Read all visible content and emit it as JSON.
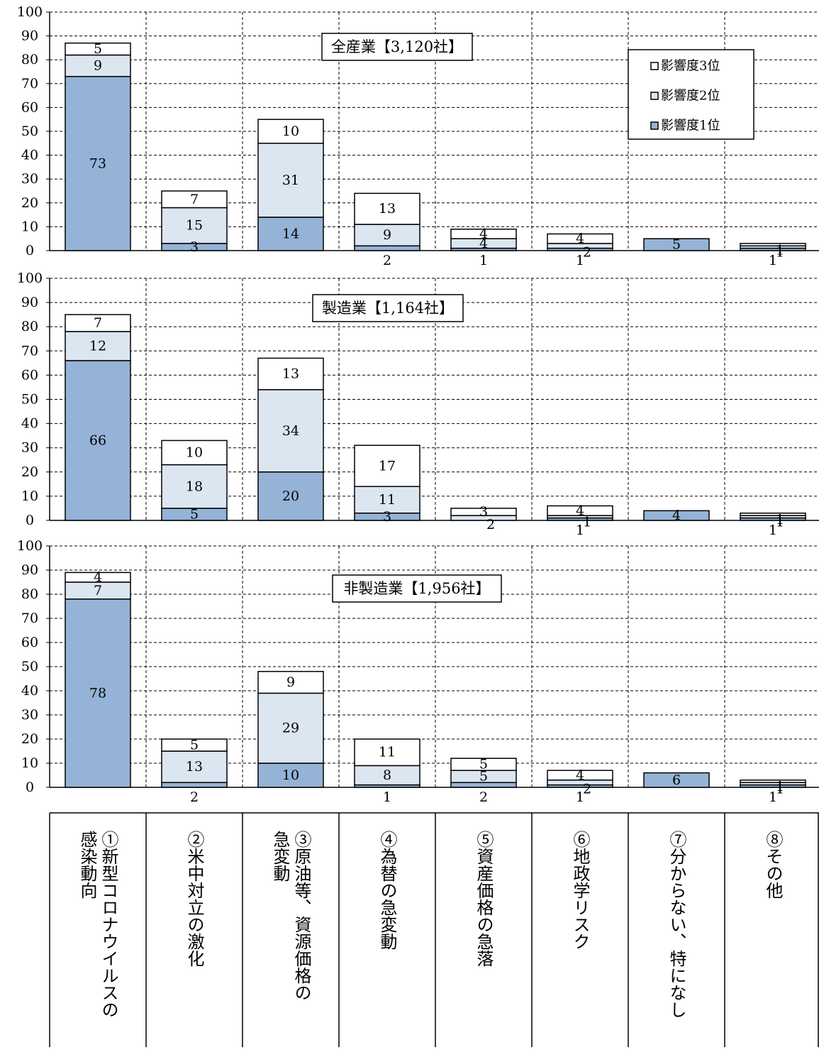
{
  "chart_data": [
    {
      "type": "bar",
      "stacked": true,
      "title": "全産業【3,120社】",
      "categories": [
        "①新型コロナウイルスの感染動向",
        "②米中対立の激化",
        "③原油等、資源価格の急変動",
        "④為替の急変動",
        "⑤資産価格の急落",
        "⑥地政学リスク",
        "⑦分からない、特になし",
        "⑧その他"
      ],
      "series": [
        {
          "name": "影響度1位",
          "values": [
            73,
            3,
            14,
            2,
            1,
            1,
            5,
            1
          ]
        },
        {
          "name": "影響度2位",
          "values": [
            9,
            15,
            31,
            9,
            4,
            2,
            0,
            1
          ]
        },
        {
          "name": "影響度3位",
          "values": [
            5,
            7,
            10,
            13,
            4,
            4,
            0,
            1
          ]
        }
      ],
      "ylim": [
        0,
        100
      ],
      "yticks": [
        0,
        10,
        20,
        30,
        40,
        50,
        60,
        70,
        80,
        90,
        100
      ],
      "grid": true,
      "legend": "top-right"
    },
    {
      "type": "bar",
      "stacked": true,
      "title": "製造業【1,164社】",
      "categories": [
        "①新型コロナウイルスの感染動向",
        "②米中対立の激化",
        "③原油等、資源価格の急変動",
        "④為替の急変動",
        "⑤資産価格の急落",
        "⑥地政学リスク",
        "⑦分からない、特になし",
        "⑧その他"
      ],
      "series": [
        {
          "name": "影響度1位",
          "values": [
            66,
            5,
            20,
            3,
            0,
            1,
            4,
            1
          ]
        },
        {
          "name": "影響度2位",
          "values": [
            12,
            18,
            34,
            11,
            2,
            1,
            0,
            1
          ]
        },
        {
          "name": "影響度3位",
          "values": [
            7,
            10,
            13,
            17,
            3,
            4,
            0,
            1
          ]
        }
      ],
      "ylim": [
        0,
        100
      ],
      "yticks": [
        0,
        10,
        20,
        30,
        40,
        50,
        60,
        70,
        80,
        90,
        100
      ],
      "grid": true
    },
    {
      "type": "bar",
      "stacked": true,
      "title": "非製造業【1,956社】",
      "categories": [
        "①新型コロナウイルスの感染動向",
        "②米中対立の激化",
        "③原油等、資源価格の急変動",
        "④為替の急変動",
        "⑤資産価格の急落",
        "⑥地政学リスク",
        "⑦分からない、特になし",
        "⑧その他"
      ],
      "series": [
        {
          "name": "影響度1位",
          "values": [
            78,
            2,
            10,
            1,
            2,
            1,
            6,
            1
          ]
        },
        {
          "name": "影響度2位",
          "values": [
            7,
            13,
            29,
            8,
            5,
            2,
            0,
            1
          ]
        },
        {
          "name": "影響度3位",
          "values": [
            4,
            5,
            9,
            11,
            5,
            4,
            0,
            1
          ]
        }
      ],
      "ylim": [
        0,
        100
      ],
      "yticks": [
        0,
        10,
        20,
        30,
        40,
        50,
        60,
        70,
        80,
        90,
        100
      ],
      "grid": true
    }
  ],
  "legend": [
    "影響度3位",
    "影響度2位",
    "影響度1位"
  ],
  "category_labels": [
    "①新型コロナウイルスの\n感染動向",
    "②米中対立の激化",
    "③原油等、資源価格の\n急変動",
    "④為替の急変動",
    "⑤資産価格の急落",
    "⑥地政学リスク",
    "⑦分からない、特になし",
    "⑧その他"
  ],
  "colors": {
    "rank1": "#95b3d7",
    "rank2": "#dce6f1",
    "rank3": "#ffffff",
    "stroke": "#000000",
    "grid": "#000000"
  }
}
